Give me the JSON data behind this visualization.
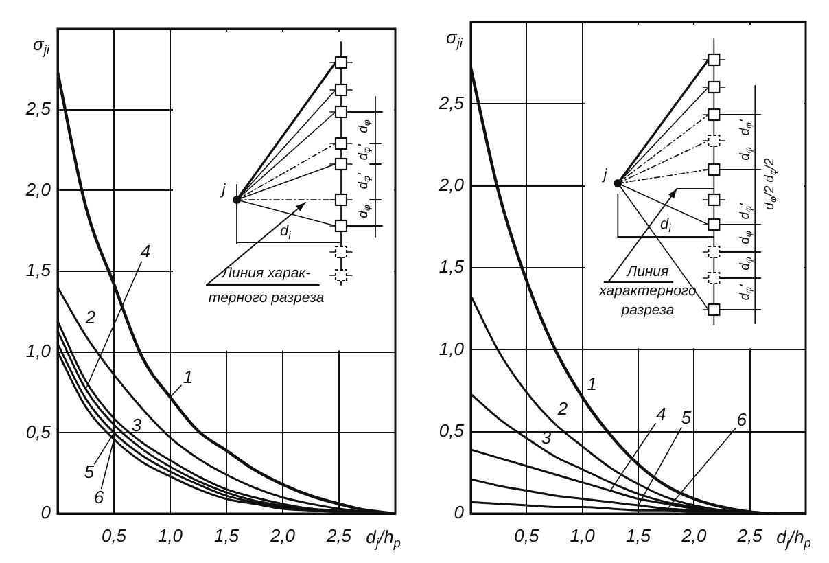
{
  "chart_data": [
    {
      "type": "line",
      "xlabel": "d$_{j}$/h$_{p}$",
      "ylabel": "σ$_{ji}$",
      "x": [
        0,
        0.25,
        0.5,
        0.75,
        1,
        1.25,
        1.5,
        1.75,
        2,
        2.25,
        2.5,
        2.75,
        3
      ],
      "series": [
        {
          "name": "1",
          "color": "#111111",
          "values": [
            2.73,
            1.9,
            1.42,
            0.97,
            0.72,
            0.51,
            0.39,
            0.27,
            0.18,
            0.11,
            0.06,
            0.02,
            0
          ]
        },
        {
          "name": "2",
          "color": "#111111",
          "values": [
            1.4,
            1.1,
            0.86,
            0.65,
            0.47,
            0.34,
            0.24,
            0.16,
            0.1,
            0.06,
            0.03,
            0.01,
            0
          ]
        },
        {
          "name": "3",
          "color": "#111111",
          "values": [
            1.19,
            0.82,
            0.59,
            0.44,
            0.33,
            0.23,
            0.15,
            0.1,
            0.06,
            0.03,
            0.02,
            0.01,
            0
          ]
        },
        {
          "name": "4",
          "color": "#111111",
          "values": [
            1.13,
            0.77,
            0.55,
            0.4,
            0.29,
            0.2,
            0.13,
            0.08,
            0.05,
            0.03,
            0.01,
            0,
            0
          ]
        },
        {
          "name": "5",
          "color": "#111111",
          "values": [
            1.05,
            0.71,
            0.5,
            0.36,
            0.26,
            0.18,
            0.11,
            0.07,
            0.04,
            0.02,
            0.01,
            0,
            0
          ]
        },
        {
          "name": "6",
          "color": "#111111",
          "values": [
            1.0,
            0.66,
            0.46,
            0.32,
            0.23,
            0.15,
            0.09,
            0.06,
            0.03,
            0.02,
            0.01,
            0,
            0
          ]
        }
      ],
      "xlim": [
        0,
        3
      ],
      "ylim": [
        0,
        3
      ],
      "xticks": [
        {
          "value": 0.5,
          "label": "0,5"
        },
        {
          "value": 1,
          "label": "1,0"
        },
        {
          "value": 1.5,
          "label": "1,5"
        },
        {
          "value": 2,
          "label": "2,0"
        },
        {
          "value": 2.5,
          "label": "2,5"
        }
      ],
      "yticks": [
        0,
        {
          "value": 0.5,
          "label": "0,5"
        },
        {
          "value": 1,
          "label": "1,0"
        },
        {
          "value": 1.5,
          "label": "1,5"
        },
        {
          "value": 2,
          "label": "2,0"
        },
        {
          "value": 2.5,
          "label": "2,5"
        }
      ],
      "grid": true,
      "annotations": [
        "j",
        "d$_{i}$",
        "d$_{φ}$",
        "d$_{φ}$'",
        "d$_{φ}$'",
        "d$_{φ}$",
        "Линия харак-\nтерного разреза"
      ]
    },
    {
      "type": "line",
      "xlabel": "d$_{j}$/h$_{p}$",
      "ylabel": "σ$_{ji}$",
      "x": [
        0,
        0.25,
        0.5,
        0.75,
        1,
        1.25,
        1.5,
        1.75,
        2,
        2.25,
        2.5,
        2.75,
        3
      ],
      "series": [
        {
          "name": "1",
          "color": "#111111",
          "values": [
            2.72,
            1.96,
            1.42,
            1.01,
            0.71,
            0.48,
            0.3,
            0.17,
            0.09,
            0.04,
            0.01,
            0,
            0
          ]
        },
        {
          "name": "2",
          "color": "#111111",
          "values": [
            1.33,
            0.99,
            0.74,
            0.55,
            0.41,
            0.28,
            0.18,
            0.1,
            0.05,
            0.02,
            0.01,
            0,
            0
          ]
        },
        {
          "name": "3",
          "color": "#111111",
          "values": [
            0.73,
            0.58,
            0.46,
            0.35,
            0.27,
            0.19,
            0.12,
            0.07,
            0.04,
            0.02,
            0.01,
            0,
            0
          ]
        },
        {
          "name": "4",
          "color": "#111111",
          "values": [
            0.39,
            0.34,
            0.29,
            0.24,
            0.19,
            0.14,
            0.09,
            0.06,
            0.03,
            0.01,
            0,
            0,
            0
          ]
        },
        {
          "name": "5",
          "color": "#111111",
          "values": [
            0.21,
            0.17,
            0.14,
            0.11,
            0.09,
            0.07,
            0.05,
            0.03,
            0.02,
            0.01,
            0,
            0,
            0
          ]
        },
        {
          "name": "6",
          "color": "#111111",
          "values": [
            0.07,
            0.06,
            0.05,
            0.04,
            0.04,
            0.03,
            0.02,
            0.02,
            0.01,
            0.01,
            0,
            0,
            0
          ]
        }
      ],
      "xlim": [
        0,
        3
      ],
      "ylim": [
        0,
        3
      ],
      "xticks": [
        {
          "value": 0.5,
          "label": "0,5"
        },
        {
          "value": 1,
          "label": "1,0"
        },
        {
          "value": 1.5,
          "label": "1,5"
        },
        {
          "value": 2,
          "label": "2,0"
        },
        {
          "value": 2.5,
          "label": "2,5"
        }
      ],
      "yticks": [
        0,
        {
          "value": 0.5,
          "label": "0,5"
        },
        {
          "value": 1,
          "label": "1,0"
        },
        {
          "value": 1.5,
          "label": "1,5"
        },
        {
          "value": 2,
          "label": "2,0"
        },
        {
          "value": 2.5,
          "label": "2,5"
        }
      ],
      "grid": true,
      "annotations": [
        "j",
        "d$_{i}$",
        "d$_{φ}$'",
        "d$_{φ}$",
        "d$_{φ}$/2",
        "d$_{φ}$/2",
        "d$_{φ}$'",
        "d$_{φ}$",
        "d$_{φ}$",
        "d$_{φ}$'",
        "Линия\nхарактерного\nразреза"
      ]
    }
  ]
}
